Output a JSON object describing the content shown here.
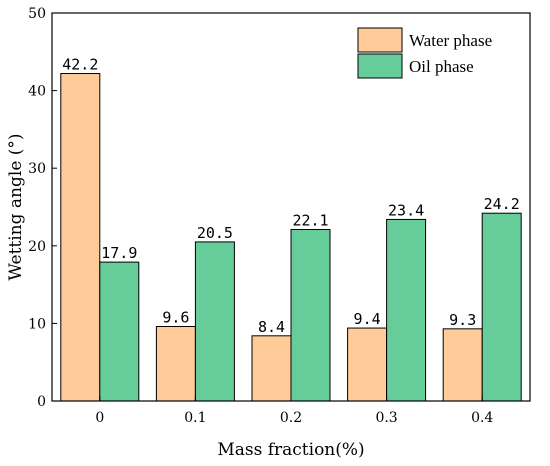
{
  "chart_data": {
    "type": "bar",
    "title": "",
    "xlabel": "Mass fraction(%)",
    "ylabel": "Wetting angle (°)",
    "categories": [
      "0",
      "0.1",
      "0.2",
      "0.3",
      "0.4"
    ],
    "ylim": [
      0,
      50
    ],
    "yticks": [
      "0",
      "10",
      "20",
      "30",
      "40",
      "50"
    ],
    "grid": false,
    "legend_position": "top-right",
    "series": [
      {
        "name": "Water phase",
        "color": "#FFCC99",
        "values": [
          42.2,
          9.6,
          8.4,
          9.4,
          9.3
        ],
        "labels": [
          "42.2",
          "9.6",
          "8.4",
          "9.4",
          "9.3"
        ]
      },
      {
        "name": "Oil phase",
        "color": "#66CC99",
        "values": [
          17.9,
          20.5,
          22.1,
          23.4,
          24.2
        ],
        "labels": [
          "17.9",
          "20.5",
          "22.1",
          "23.4",
          "24.2"
        ]
      }
    ]
  }
}
